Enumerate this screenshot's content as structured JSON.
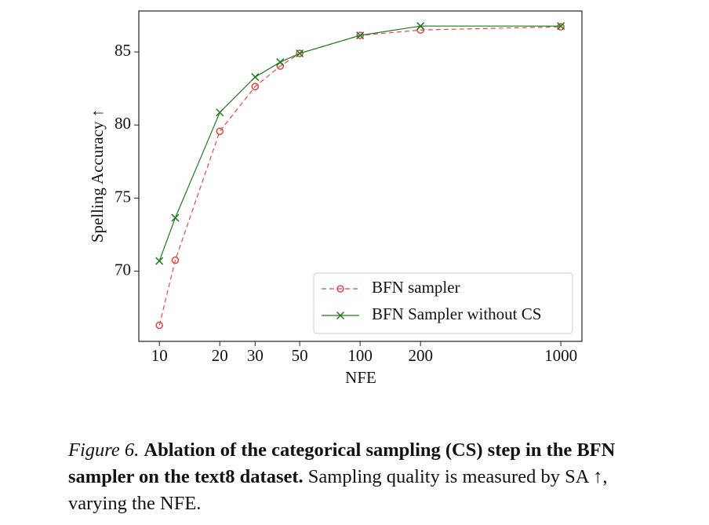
{
  "chart_data": {
    "type": "line",
    "xlabel": "NFE",
    "ylabel": "Spelling Accuracy ↑",
    "xscale": "log",
    "xlim": [
      7.9,
      1274
    ],
    "ylim": [
      65.2,
      87.8
    ],
    "xticks": [
      10,
      20,
      30,
      50,
      100,
      200,
      1000
    ],
    "yticks": [
      70,
      75,
      80,
      85
    ],
    "legend": "lower right",
    "series": [
      {
        "name": "BFN sampler",
        "color": "#e8474a",
        "dashed": true,
        "marker": "circle",
        "x": [
          10,
          12,
          20,
          30,
          40,
          50,
          100,
          200,
          1000
        ],
        "values": [
          66.3,
          70.75,
          79.57,
          82.63,
          84.03,
          84.9,
          86.13,
          86.5,
          86.72
        ]
      },
      {
        "name": "BFN Sampler without CS",
        "color": "#1f7a1f",
        "dashed": false,
        "marker": "x",
        "x": [
          10,
          12,
          20,
          30,
          40,
          50,
          100,
          200,
          1000
        ],
        "values": [
          70.7,
          73.65,
          80.86,
          83.28,
          84.3,
          84.9,
          86.13,
          86.77,
          86.77
        ]
      }
    ]
  },
  "caption": {
    "label": "Figure 6.",
    "bold": "Ablation of the categorical sampling (CS) step in the BFN sampler on the text8 dataset.",
    "text": "Sampling quality is measured by SA ↑, varying the NFE."
  }
}
